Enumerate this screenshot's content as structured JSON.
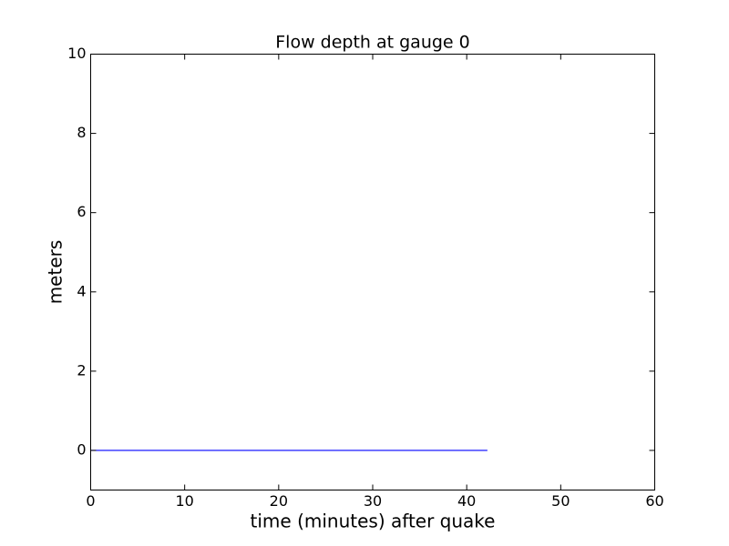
{
  "chart_data": {
    "type": "line",
    "title": "Flow depth at gauge 0",
    "xlabel": "time (minutes) after quake",
    "ylabel": "meters",
    "x": [
      0,
      42.2
    ],
    "values": [
      0,
      0
    ],
    "color": "#0000ff",
    "xlim": [
      0,
      60
    ],
    "xticks": [
      0,
      10,
      20,
      30,
      40,
      50,
      60
    ],
    "ylim": [
      -1,
      10
    ],
    "yticks": [
      0,
      2,
      4,
      6,
      8,
      10
    ],
    "grid": false
  }
}
